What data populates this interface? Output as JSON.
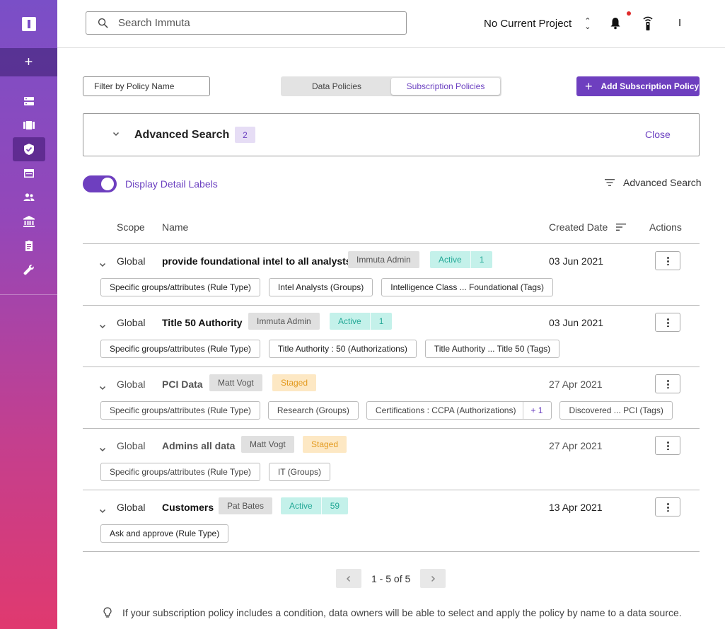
{
  "header": {
    "search_placeholder": "Search Immuta",
    "project": "No Current Project",
    "user_initial": "I"
  },
  "toolbar": {
    "filter_placeholder": "Filter by Policy Name",
    "tabs": [
      "Data Policies",
      "Subscription Policies"
    ],
    "selected_tab": "Subscription Policies",
    "add_button": "Add Subscription Policy"
  },
  "advanced": {
    "title": "Advanced Search",
    "count": "2",
    "close": "Close"
  },
  "display_labels": {
    "label": "Display Detail Labels",
    "enabled": true,
    "advanced_search_link": "Advanced Search"
  },
  "table": {
    "columns": {
      "scope": "Scope",
      "name": "Name",
      "created": "Created Date",
      "actions": "Actions"
    },
    "rows": [
      {
        "scope": "Global",
        "name": "provide foundational intel to all analysts",
        "owner": "Immuta Admin",
        "status": "Active",
        "count": "1",
        "date": "03 Jun 2021",
        "chips": [
          "Specific groups/attributes (Rule Type)",
          "Intel Analysts (Groups)",
          "Intelligence Class ... Foundational (Tags)"
        ]
      },
      {
        "scope": "Global",
        "name": "Title 50 Authority",
        "owner": "Immuta Admin",
        "status": "Active",
        "count": "1",
        "date": "03 Jun 2021",
        "chips": [
          "Specific groups/attributes (Rule Type)",
          "Title Authority : 50 (Authorizations)",
          "Title Authority ... Title 50 (Tags)"
        ]
      },
      {
        "scope": "Global",
        "name": "PCI Data",
        "owner": "Matt Vogt",
        "status": "Staged",
        "date": "27 Apr 2021",
        "chips": [
          "Specific groups/attributes (Rule Type)",
          "Research (Groups)",
          "Certifications : CCPA (Authorizations)",
          "Discovered ... PCI (Tags)"
        ],
        "chip_extra": "+ 1"
      },
      {
        "scope": "Global",
        "name": "Admins all data",
        "owner": "Matt Vogt",
        "status": "Staged",
        "date": "27 Apr 2021",
        "chips": [
          "Specific groups/attributes (Rule Type)",
          "IT (Groups)"
        ]
      },
      {
        "scope": "Global",
        "name": "Customers",
        "owner": "Pat Bates",
        "status": "Active",
        "count": "59",
        "date": "13 Apr 2021",
        "chips": [
          "Ask and approve (Rule Type)"
        ]
      }
    ]
  },
  "pagination": {
    "text": "1 - 5 of 5",
    "prev": "‹",
    "next": "›"
  },
  "hint": "If your subscription policy includes a condition, data owners will be able to select and apply the policy by name to a data source.",
  "colors": {
    "accent": "#6e3fbf",
    "active": "#22a896",
    "staged": "#e39a1e"
  }
}
